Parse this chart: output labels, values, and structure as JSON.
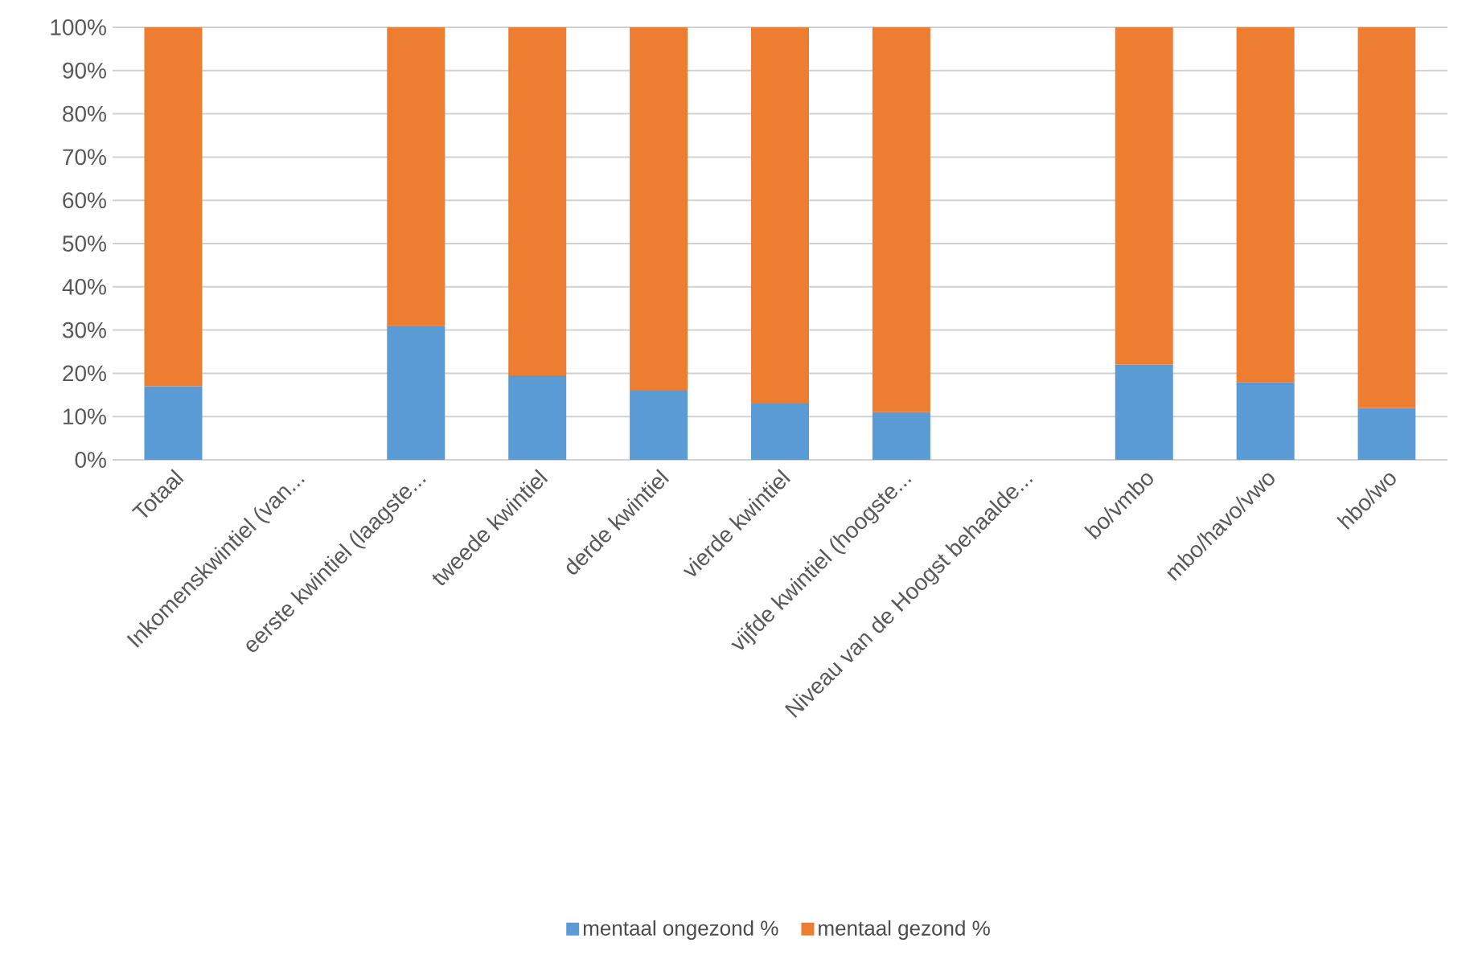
{
  "chart_data": {
    "type": "bar",
    "stacked": true,
    "categories": [
      "Totaal",
      "Inkomenskwintiel (van...",
      "eerste kwintiel (laagste...",
      "tweede kwintiel",
      "derde kwintiel",
      "vierde kwintiel",
      "vijfde kwintiel (hoogste...",
      "Niveau van de Hoogst behaalde...",
      "bo/vmbo",
      "mbo/havo/vwo",
      "hbo/wo"
    ],
    "series": [
      {
        "name": "mentaal ongezond %",
        "color": "#5b9bd5",
        "values": [
          17,
          null,
          31,
          19.5,
          16,
          13,
          11,
          null,
          22,
          18,
          12
        ]
      },
      {
        "name": "mentaal gezond %",
        "color": "#ed7d31",
        "values": [
          83,
          null,
          69,
          80.5,
          84,
          87,
          89,
          null,
          78,
          82,
          88
        ]
      }
    ],
    "ylim": [
      0,
      100
    ],
    "yticks": [
      {
        "value": 0,
        "label": "0%"
      },
      {
        "value": 10,
        "label": "10%"
      },
      {
        "value": 20,
        "label": "20%"
      },
      {
        "value": 30,
        "label": "30%"
      },
      {
        "value": 40,
        "label": "40%"
      },
      {
        "value": 50,
        "label": "50%"
      },
      {
        "value": 60,
        "label": "60%"
      },
      {
        "value": 70,
        "label": "70%"
      },
      {
        "value": 80,
        "label": "80%"
      },
      {
        "value": 90,
        "label": "90%"
      },
      {
        "value": 100,
        "label": "100%"
      }
    ],
    "grid": "y",
    "legend": "bottom"
  }
}
